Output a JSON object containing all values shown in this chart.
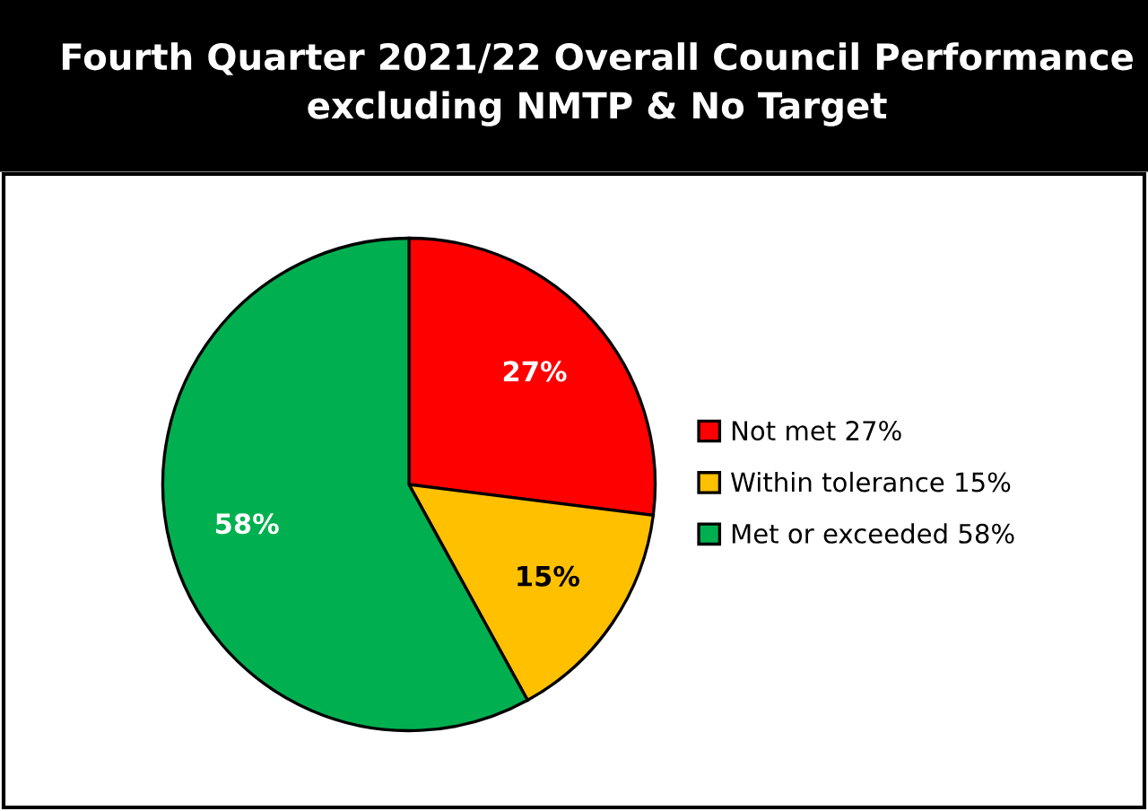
{
  "chart_data": {
    "type": "pie",
    "title": "Fourth Quarter 2021/22 Overall Council Performance\nexcluding NMTP & No Target",
    "categories": [
      "Not met 27%",
      "Within tolerance 15%",
      "Met or exceeded 58%"
    ],
    "values": [
      27,
      15,
      58
    ],
    "colors": [
      "#ff0000",
      "#ffc000",
      "#00b050"
    ],
    "value_labels": [
      "27%",
      "15%",
      "58%"
    ],
    "legend": "right"
  }
}
